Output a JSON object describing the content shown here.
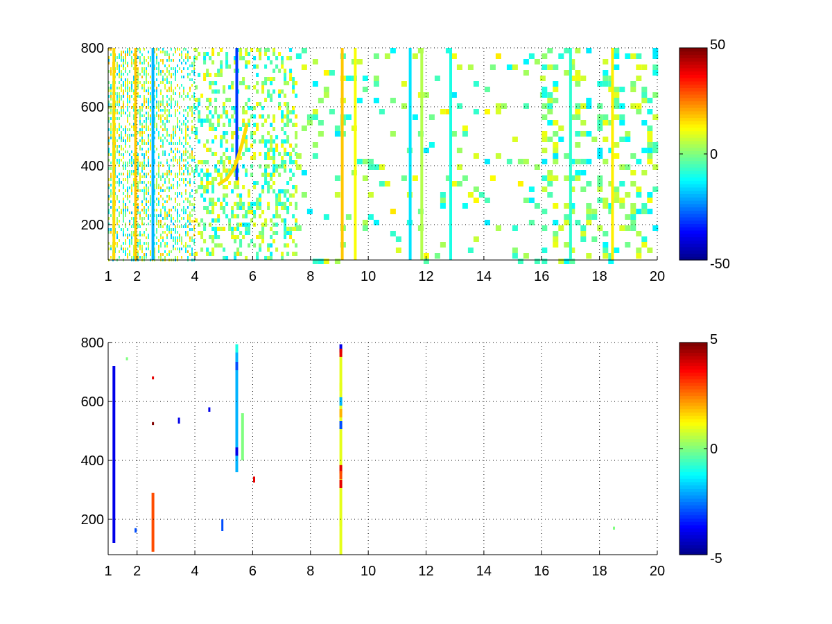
{
  "chart_data": [
    {
      "type": "heatmap",
      "title": "",
      "xlabel": "",
      "ylabel": "",
      "xlim": [
        1,
        20
      ],
      "ylim": [
        80,
        800
      ],
      "x_ticks": [
        1,
        2,
        4,
        6,
        8,
        10,
        12,
        14,
        16,
        18,
        20
      ],
      "x_tick_labels": [
        "1",
        "2",
        "4",
        "6",
        "8",
        "10",
        "12",
        "14",
        "16",
        "18",
        "20"
      ],
      "y_ticks": [
        200,
        400,
        600,
        800
      ],
      "y_tick_labels": [
        "200",
        "400",
        "600",
        "800"
      ],
      "grid": true,
      "colormap": "jet",
      "clim": [
        -50,
        50
      ],
      "colorbar_ticks": [
        -50,
        0,
        50
      ],
      "colorbar_tick_labels": [
        "-50",
        "0",
        "50"
      ],
      "colorbar_position": "right",
      "color_scale_colors": [
        "#00008f",
        "#0000ff",
        "#00ffff",
        "#ffff00",
        "#ff0000",
        "#800000"
      ],
      "features": [
        {
          "kind": "column",
          "x": 9.1,
          "y_range": [
            80,
            800
          ],
          "value": 18
        },
        {
          "kind": "column",
          "x": 9.55,
          "y_range": [
            80,
            800
          ],
          "value": 12
        },
        {
          "kind": "column",
          "x": 5.45,
          "y_range": [
            350,
            800
          ],
          "value": -32
        },
        {
          "kind": "column",
          "x": 2.55,
          "y_range": [
            80,
            800
          ],
          "value": -20
        },
        {
          "kind": "column",
          "x": 1.2,
          "y_range": [
            80,
            800
          ],
          "value": 16
        },
        {
          "kind": "column",
          "x": 1.95,
          "y_range": [
            80,
            800
          ],
          "value": 18
        },
        {
          "kind": "column",
          "x": 11.45,
          "y_range": [
            80,
            800
          ],
          "value": -15
        },
        {
          "kind": "column",
          "x": 11.85,
          "y_range": [
            80,
            800
          ],
          "value": 5
        },
        {
          "kind": "column",
          "x": 12.85,
          "y_range": [
            80,
            800
          ],
          "value": -10
        },
        {
          "kind": "column",
          "x": 18.45,
          "y_range": [
            80,
            800
          ],
          "value": 14
        },
        {
          "kind": "column",
          "x": 17.0,
          "y_range": [
            80,
            800
          ],
          "value": -8
        },
        {
          "kind": "curve",
          "points": [
            [
              4.8,
              335
            ],
            [
              5.1,
              355
            ],
            [
              5.35,
              390
            ],
            [
              5.5,
              430
            ],
            [
              5.65,
              480
            ],
            [
              5.8,
              540
            ]
          ],
          "value": 16
        }
      ],
      "regions": [
        {
          "x_range": [
            1,
            4
          ],
          "density": 0.9,
          "value_range": [
            -20,
            20
          ]
        },
        {
          "x_range": [
            4,
            7.5
          ],
          "density": 0.35,
          "value_range": [
            -15,
            15
          ]
        },
        {
          "x_range": [
            7.5,
            16
          ],
          "density": 0.1,
          "value_range": [
            -15,
            15
          ]
        },
        {
          "x_range": [
            16,
            20
          ],
          "density": 0.3,
          "value_range": [
            -15,
            12
          ]
        }
      ]
    },
    {
      "type": "heatmap",
      "title": "",
      "xlabel": "",
      "ylabel": "",
      "xlim": [
        1,
        20
      ],
      "ylim": [
        80,
        800
      ],
      "x_ticks": [
        1,
        2,
        4,
        6,
        8,
        10,
        12,
        14,
        16,
        18,
        20
      ],
      "x_tick_labels": [
        "1",
        "2",
        "4",
        "6",
        "8",
        "10",
        "12",
        "14",
        "16",
        "18",
        "20"
      ],
      "y_ticks": [
        200,
        400,
        600,
        800
      ],
      "y_tick_labels": [
        "200",
        "400",
        "600",
        "800"
      ],
      "grid": true,
      "colormap": "jet",
      "clim": [
        -5,
        5
      ],
      "colorbar_ticks": [
        -5,
        0,
        5
      ],
      "colorbar_tick_labels": [
        "-5",
        "0",
        "5"
      ],
      "colorbar_position": "right",
      "color_scale_colors": [
        "#00008f",
        "#0000ff",
        "#00ffff",
        "#ffff00",
        "#ff0000",
        "#800000"
      ],
      "features": [
        {
          "kind": "column",
          "x": 9.05,
          "y_range": [
            80,
            780
          ],
          "value": 1
        },
        {
          "kind": "column",
          "x": 5.45,
          "y_range": [
            360,
            790
          ],
          "value": -2
        },
        {
          "kind": "column",
          "x": 1.2,
          "y_range": [
            120,
            720
          ],
          "value": -4
        },
        {
          "kind": "column",
          "x": 2.55,
          "y_range": [
            90,
            290
          ],
          "value": 3
        },
        {
          "kind": "column",
          "x": 5.65,
          "y_range": [
            400,
            560
          ],
          "value": 0
        },
        {
          "kind": "segment",
          "x": 6.05,
          "y_range": [
            325,
            345
          ],
          "value": 4
        },
        {
          "kind": "segment",
          "x": 4.95,
          "y_range": [
            160,
            200
          ],
          "value": -3
        },
        {
          "kind": "segment",
          "x": 3.45,
          "y_range": [
            525,
            545
          ],
          "value": -4
        },
        {
          "kind": "segment",
          "x": 4.5,
          "y_range": [
            565,
            580
          ],
          "value": -4
        },
        {
          "kind": "segment",
          "x": 18.5,
          "y_range": [
            165,
            175
          ],
          "value": 0
        },
        {
          "kind": "segment",
          "x": 2.55,
          "y_range": [
            675,
            685
          ],
          "value": 4
        },
        {
          "kind": "segment",
          "x": 2.55,
          "y_range": [
            520,
            530
          ],
          "value": 5
        },
        {
          "kind": "segment",
          "x": 1.65,
          "y_range": [
            740,
            750
          ],
          "value": 0
        },
        {
          "kind": "segment",
          "x": 1.95,
          "y_range": [
            155,
            170
          ],
          "value": -3
        }
      ],
      "column_values": [
        {
          "x": 9.05,
          "y": 780,
          "value": -4
        },
        {
          "x": 9.05,
          "y": 765,
          "value": 4
        },
        {
          "x": 9.05,
          "y": 650,
          "value": 1
        },
        {
          "x": 9.05,
          "y": 600,
          "value": -2
        },
        {
          "x": 9.05,
          "y": 560,
          "value": 2
        },
        {
          "x": 9.05,
          "y": 520,
          "value": -3
        },
        {
          "x": 9.05,
          "y": 370,
          "value": 4
        },
        {
          "x": 9.05,
          "y": 350,
          "value": 3
        },
        {
          "x": 9.05,
          "y": 320,
          "value": 4
        },
        {
          "x": 9.05,
          "y": 190,
          "value": 1
        },
        {
          "x": 5.45,
          "y": 780,
          "value": -1
        },
        {
          "x": 5.45,
          "y": 720,
          "value": -3
        },
        {
          "x": 5.45,
          "y": 640,
          "value": -2
        },
        {
          "x": 5.45,
          "y": 430,
          "value": -4
        }
      ]
    }
  ]
}
